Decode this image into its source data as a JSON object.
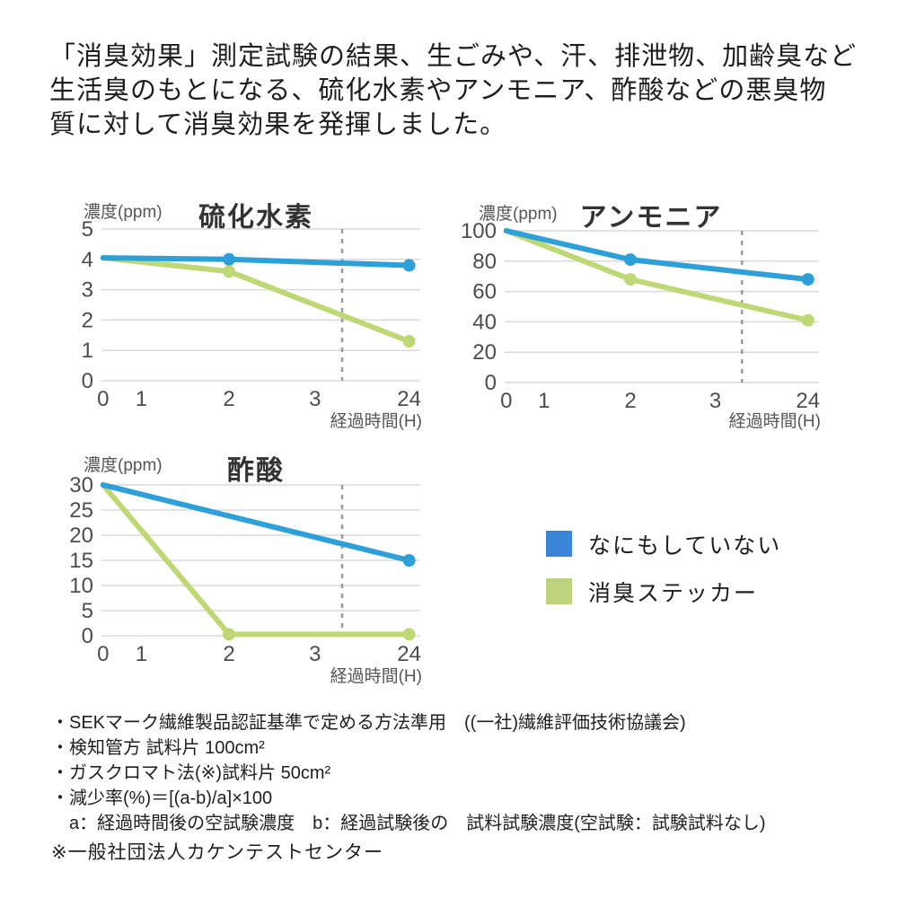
{
  "header": {
    "lines": [
      "「消臭効果」測定試験の結果、生ごみや、汗、排泄物、加齢臭など",
      "生活臭のもとになる、硫化水素やアンモニア、酢酸などの悪臭物",
      "質に対して消臭効果を発揮しました。"
    ]
  },
  "chart_data": [
    {
      "type": "line",
      "title": "硫化水素",
      "ylabel": "濃度(ppm)",
      "xlabel": "経過時間(H)",
      "x_tick_labels": [
        "0",
        "1",
        "2",
        "3",
        "24"
      ],
      "x_values": [
        0,
        1,
        2,
        3,
        24
      ],
      "y_ticks": [
        0,
        1,
        2,
        3,
        4,
        5
      ],
      "ylim": [
        0,
        5
      ],
      "grid": true,
      "dashed_guide": "between 3H and 24H",
      "series": [
        {
          "name": "なにもしていない",
          "color": "#2d9fd9",
          "x": [
            0,
            2,
            24
          ],
          "values": [
            4.05,
            4.0,
            3.8
          ],
          "marker_x": [
            2,
            24
          ]
        },
        {
          "name": "消臭ステッカー",
          "color": "#bdd874",
          "x": [
            0,
            2,
            24
          ],
          "values": [
            4.05,
            3.6,
            1.3
          ],
          "marker_x": [
            2,
            24
          ]
        }
      ]
    },
    {
      "type": "line",
      "title": "アンモニア",
      "ylabel": "濃度(ppm)",
      "xlabel": "経過時間(H)",
      "x_tick_labels": [
        "0",
        "1",
        "2",
        "3",
        "24"
      ],
      "x_values": [
        0,
        1,
        2,
        3,
        24
      ],
      "y_ticks": [
        0,
        20,
        40,
        60,
        80,
        100
      ],
      "ylim": [
        0,
        100
      ],
      "grid": true,
      "dashed_guide": "between 3H and 24H",
      "series": [
        {
          "name": "なにもしていない",
          "color": "#2d9fd9",
          "x": [
            0,
            2,
            24
          ],
          "values": [
            100,
            81,
            68
          ],
          "marker_x": [
            2,
            24
          ]
        },
        {
          "name": "消臭ステッカー",
          "color": "#bdd874",
          "x": [
            0,
            2,
            24
          ],
          "values": [
            100,
            68,
            41
          ],
          "marker_x": [
            2,
            24
          ]
        }
      ]
    },
    {
      "type": "line",
      "title": "酢酸",
      "ylabel": "濃度(ppm)",
      "xlabel": "経過時間(H)",
      "x_tick_labels": [
        "0",
        "1",
        "2",
        "3",
        "24"
      ],
      "x_values": [
        0,
        1,
        2,
        3,
        24
      ],
      "y_ticks": [
        0,
        5,
        10,
        15,
        20,
        25,
        30
      ],
      "ylim": [
        0,
        30
      ],
      "grid": true,
      "dashed_guide": "between 3H and 24H",
      "series": [
        {
          "name": "なにもしていない",
          "color": "#2d9fd9",
          "x": [
            0,
            24
          ],
          "values": [
            30,
            15
          ],
          "marker_x": [
            24
          ]
        },
        {
          "name": "消臭ステッカー",
          "color": "#bdd874",
          "x": [
            0,
            2,
            24
          ],
          "values": [
            30,
            0.3,
            0.3
          ],
          "marker_x": [
            2,
            24
          ]
        }
      ]
    }
  ],
  "legend": {
    "items": [
      {
        "label": "なにもしていない",
        "color": "#3a85d8"
      },
      {
        "label": "消臭ステッカー",
        "color": "#bdd37e"
      }
    ]
  },
  "footnotes": {
    "lines": [
      "・SEKマーク繊維製品認証基準で定める方法準用　((一社)繊維評価技術協議会)",
      "・検知管方 試料片 100cm²",
      "・ガスクロマト法(※)試料片 50cm²",
      "・減少率(%)＝[(a-b)/a]×100",
      "　a：経過時間後の空試験濃度　b：経過試験後の　試料試験濃度(空試験：試験試料なし)"
    ],
    "source_note": "※一般社団法人カケンテストセンター"
  },
  "colors": {
    "line_blue": "#2d9fd9",
    "line_green": "#bdd874",
    "gridline": "#dadada",
    "dashed_guide": "#9b9b9b",
    "tick_text": "#4d4d4d",
    "body_text": "#1e1e1e"
  }
}
